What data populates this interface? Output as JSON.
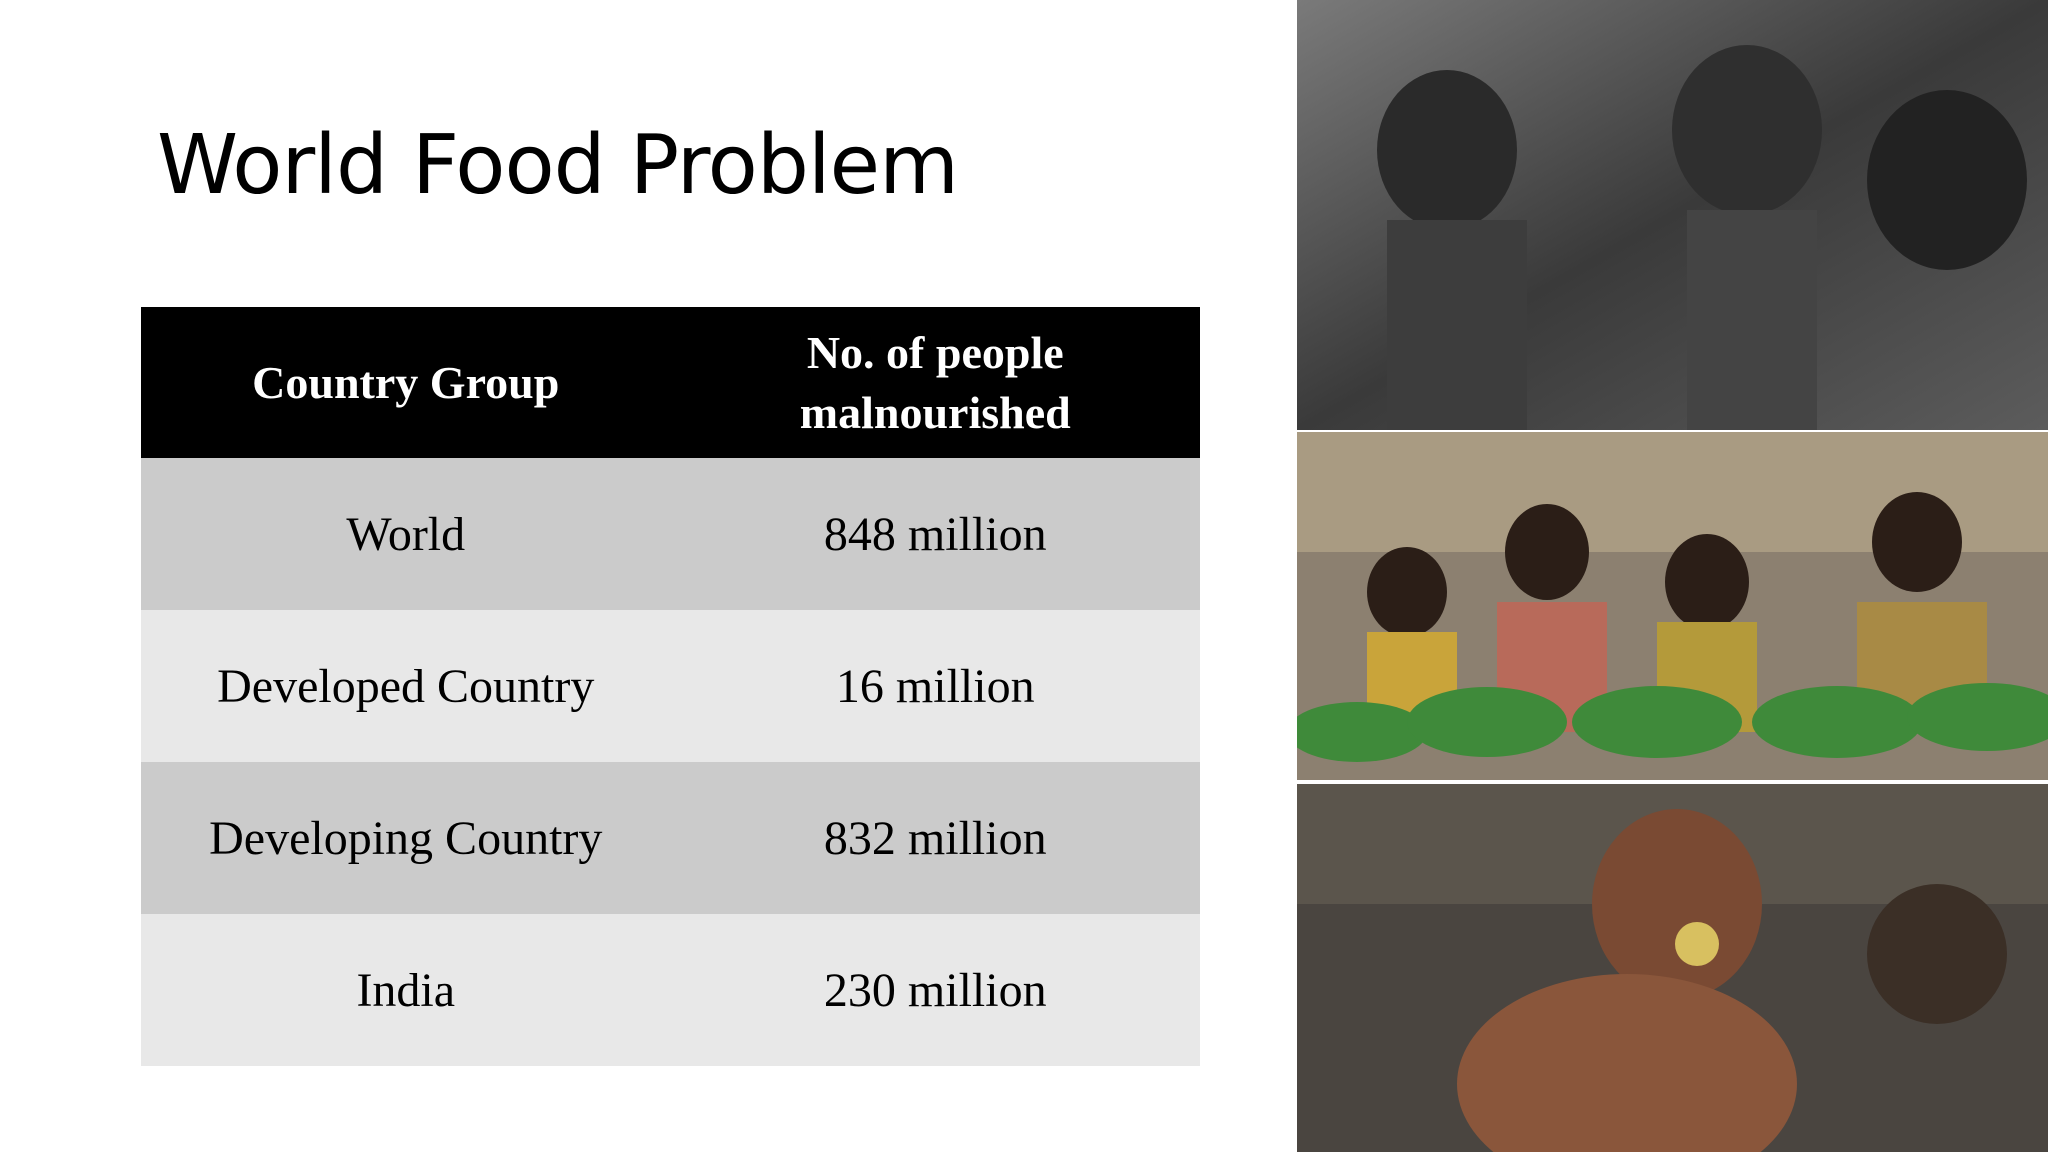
{
  "header": {
    "title": "World Food Problem"
  },
  "table": {
    "columns": [
      "Country Group",
      "No. of people malnourished"
    ],
    "rows": [
      [
        "World",
        "848 million"
      ],
      [
        "Developed Country",
        "16 million"
      ],
      [
        "Developing Country",
        "832 million"
      ],
      [
        "India",
        "230 million"
      ]
    ]
  }
}
